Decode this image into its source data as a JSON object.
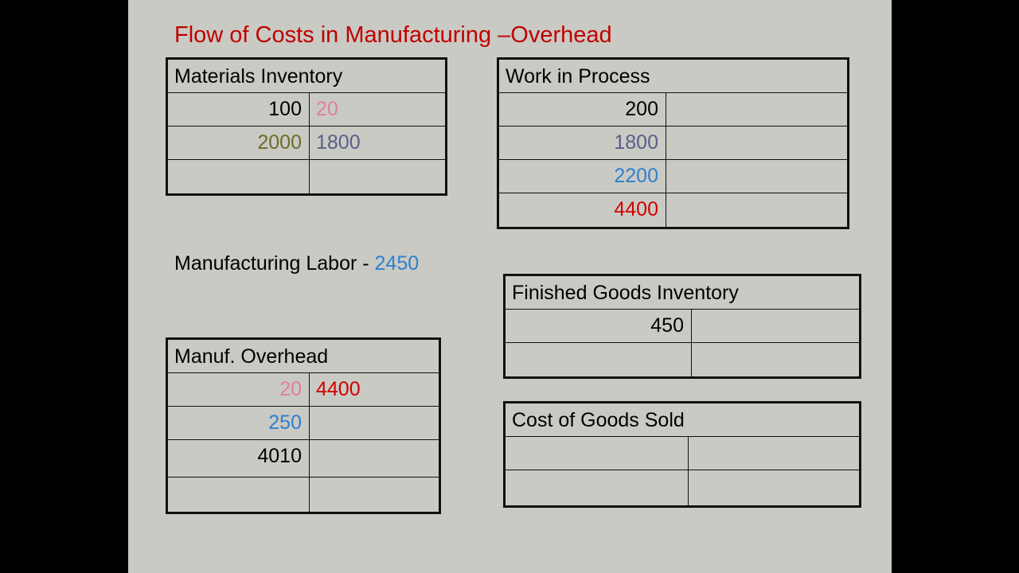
{
  "title": "Flow of Costs in Manufacturing –Overhead",
  "labor": {
    "label": "Manufacturing Labor - ",
    "value": "2450",
    "value_color": "#2e7fd0"
  },
  "colors": {
    "title": "#c00000",
    "background": "#c9cac3"
  },
  "accounts": [
    {
      "name": "Materials Inventory",
      "rows": [
        {
          "debit": "100",
          "debit_color": "#000000",
          "credit": "20",
          "credit_color": "#e07f9f"
        },
        {
          "debit": "2000",
          "debit_color": "#6b6b2a",
          "credit": "1800",
          "credit_color": "#5a5f8a"
        },
        {
          "debit": "",
          "debit_color": "#000000",
          "credit": "",
          "credit_color": "#000000"
        }
      ]
    },
    {
      "name": "Work in Process",
      "rows": [
        {
          "debit": "200",
          "debit_color": "#000000",
          "credit": "",
          "credit_color": "#000000"
        },
        {
          "debit": "1800",
          "debit_color": "#5a5f8a",
          "credit": "",
          "credit_color": "#000000"
        },
        {
          "debit": "2200",
          "debit_color": "#2e7fd0",
          "credit": "",
          "credit_color": "#000000"
        },
        {
          "debit": "4400",
          "debit_color": "#d00000",
          "credit": "",
          "credit_color": "#000000"
        }
      ]
    },
    {
      "name": "Finished Goods Inventory",
      "rows": [
        {
          "debit": "450",
          "debit_color": "#000000",
          "credit": "",
          "credit_color": "#000000"
        },
        {
          "debit": "",
          "debit_color": "#000000",
          "credit": "",
          "credit_color": "#000000"
        }
      ]
    },
    {
      "name": "Manuf. Overhead",
      "rows": [
        {
          "debit": "20",
          "debit_color": "#e07f9f",
          "credit": "4400",
          "credit_color": "#d00000"
        },
        {
          "debit": "250",
          "debit_color": "#2e7fd0",
          "credit": "",
          "credit_color": "#000000"
        },
        {
          "debit": "4010",
          "debit_color": "#000000",
          "credit": "",
          "credit_color": "#000000"
        },
        {
          "debit": "",
          "debit_color": "#000000",
          "credit": "",
          "credit_color": "#000000"
        }
      ]
    },
    {
      "name": "Cost of Goods Sold",
      "rows": [
        {
          "debit": "",
          "debit_color": "#000000",
          "credit": "",
          "credit_color": "#000000"
        },
        {
          "debit": "",
          "debit_color": "#000000",
          "credit": "",
          "credit_color": "#000000"
        }
      ]
    }
  ]
}
